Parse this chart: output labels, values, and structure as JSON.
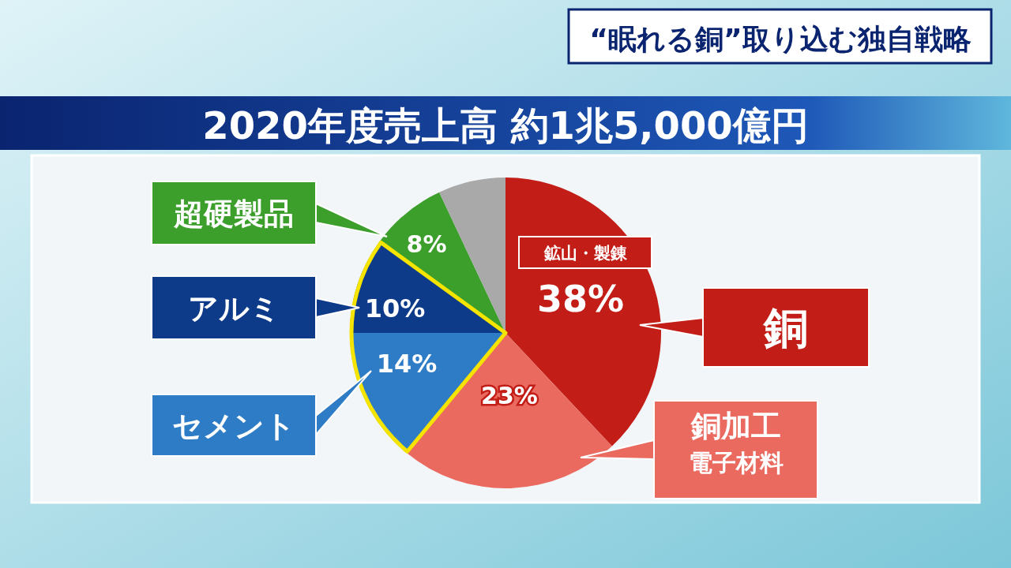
{
  "chart_data": {
    "type": "pie",
    "title": "2020年度売上高 約1兆5,000億円",
    "subtitle": "“眠れる銅”取り込む独自戦略",
    "categories": [
      "銅",
      "銅加工電子材料",
      "セメント",
      "アルミ",
      "超硬製品",
      null
    ],
    "legend": "right",
    "values": [
      38,
      23,
      14,
      10,
      8,
      7
    ],
    "colors": [
      "#c21d16",
      "#ea6a60",
      "#2f7cc6",
      "#0e3a8a",
      "#3c9f2c",
      "#a9a9a9"
    ],
    "value_labels": [
      "38%",
      "23%",
      "14%",
      "10%",
      "8%",
      null
    ],
    "annotations": [
      "鉱山・製錬"
    ]
  }
}
